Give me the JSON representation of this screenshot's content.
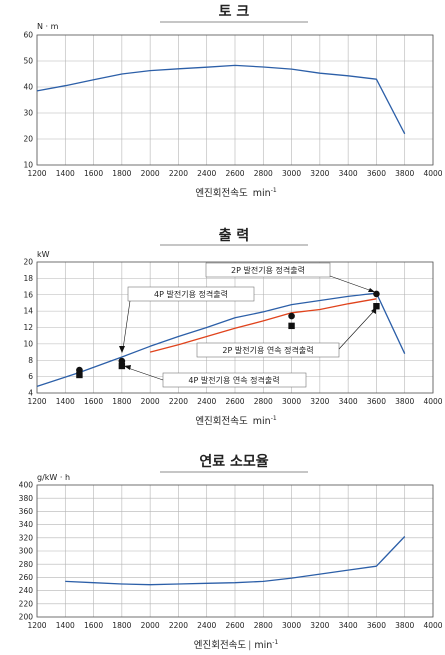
{
  "colors": {
    "blue": "#2c5fa8",
    "red": "#e0431c",
    "black": "#111111"
  },
  "chart_data": [
    {
      "type": "line",
      "title": "토 크",
      "unit": "N · m",
      "xlabel": "엔진회전속도",
      "xunit": "min",
      "xunit_sup": "-1",
      "xlim": [
        1200,
        4000
      ],
      "ylim": [
        10,
        60
      ],
      "xticks": [
        1200,
        1400,
        1600,
        1800,
        2000,
        2200,
        2400,
        2600,
        2800,
        3000,
        3200,
        3400,
        3600,
        3800,
        4000
      ],
      "yticks": [
        10,
        20,
        30,
        40,
        50,
        60
      ],
      "series": [
        {
          "color": "blue",
          "x": [
            1200,
            1400,
            1600,
            1800,
            2000,
            2200,
            2400,
            2600,
            2800,
            3000,
            3200,
            3400,
            3600,
            3800
          ],
          "y": [
            38.5,
            40.5,
            42.8,
            45,
            46.3,
            47,
            47.6,
            48.3,
            47.7,
            46.9,
            45.3,
            44.3,
            43,
            22
          ]
        }
      ]
    },
    {
      "type": "line",
      "title": "출 력",
      "unit": "kW",
      "xlabel": "엔진회전속도",
      "xunit": "min",
      "xunit_sup": "-1",
      "xlim": [
        1200,
        4000
      ],
      "ylim": [
        4,
        20
      ],
      "xticks": [
        1200,
        1400,
        1600,
        1800,
        2000,
        2200,
        2400,
        2600,
        2800,
        3000,
        3200,
        3400,
        3600,
        3800,
        4000
      ],
      "yticks": [
        4,
        6,
        8,
        10,
        12,
        14,
        16,
        18,
        20
      ],
      "series": [
        {
          "color": "blue",
          "x": [
            1200,
            1500,
            1800,
            2000,
            2200,
            2400,
            2600,
            2800,
            3000,
            3200,
            3400,
            3600,
            3800
          ],
          "y": [
            4.8,
            6.5,
            8.4,
            9.7,
            10.9,
            12,
            13.2,
            13.9,
            14.8,
            15.3,
            15.8,
            16.2,
            8.8
          ]
        },
        {
          "color": "red",
          "x": [
            2000,
            2200,
            2400,
            2600,
            2800,
            3000,
            3200,
            3400,
            3600
          ],
          "y": [
            9,
            9.9,
            10.9,
            11.9,
            12.8,
            13.8,
            14.2,
            14.9,
            15.5
          ]
        }
      ],
      "markers": [
        {
          "shape": "circle",
          "x": 1500,
          "y": 6.8
        },
        {
          "shape": "square",
          "x": 1500,
          "y": 6.2
        },
        {
          "shape": "circle",
          "x": 1800,
          "y": 7.9
        },
        {
          "shape": "square",
          "x": 1800,
          "y": 7.3
        },
        {
          "shape": "circle",
          "x": 3000,
          "y": 13.4
        },
        {
          "shape": "square",
          "x": 3000,
          "y": 12.2
        },
        {
          "shape": "circle",
          "x": 3600,
          "y": 16.1
        },
        {
          "shape": "square",
          "x": 3600,
          "y": 14.6
        }
      ],
      "annotations": [
        {
          "text": "2P 발전기용 정격출력",
          "target_x": 3600,
          "target_y": 16.1
        },
        {
          "text": "4P 발전기용 정격출력",
          "target_x": 1800,
          "target_y": 8.4
        },
        {
          "text": "2P 발전기용 연속 정격출력",
          "target_x": 3600,
          "target_y": 14.6
        },
        {
          "text": "4P 발전기용 연속 정격출력",
          "target_x": 1800,
          "target_y": 7.1
        }
      ]
    },
    {
      "type": "line",
      "title": "연료 소모율",
      "unit": "g/kW · h",
      "xlabel": "엔진회전속도",
      "xunit": "min",
      "xunit_sup": "-1",
      "xlim": [
        1200,
        4000
      ],
      "ylim": [
        200,
        400
      ],
      "xticks": [
        1200,
        1400,
        1600,
        1800,
        2000,
        2200,
        2400,
        2600,
        2800,
        3000,
        3200,
        3400,
        3600,
        3800,
        4000
      ],
      "yticks": [
        200,
        220,
        240,
        260,
        280,
        300,
        320,
        340,
        360,
        380,
        400
      ],
      "series": [
        {
          "color": "blue",
          "x": [
            1400,
            1600,
            1800,
            2000,
            2200,
            2400,
            2600,
            2800,
            3000,
            3200,
            3400,
            3600,
            3800
          ],
          "y": [
            254,
            252,
            250,
            249,
            250,
            251,
            252,
            254,
            259,
            265,
            271,
            277,
            322
          ]
        }
      ]
    }
  ]
}
